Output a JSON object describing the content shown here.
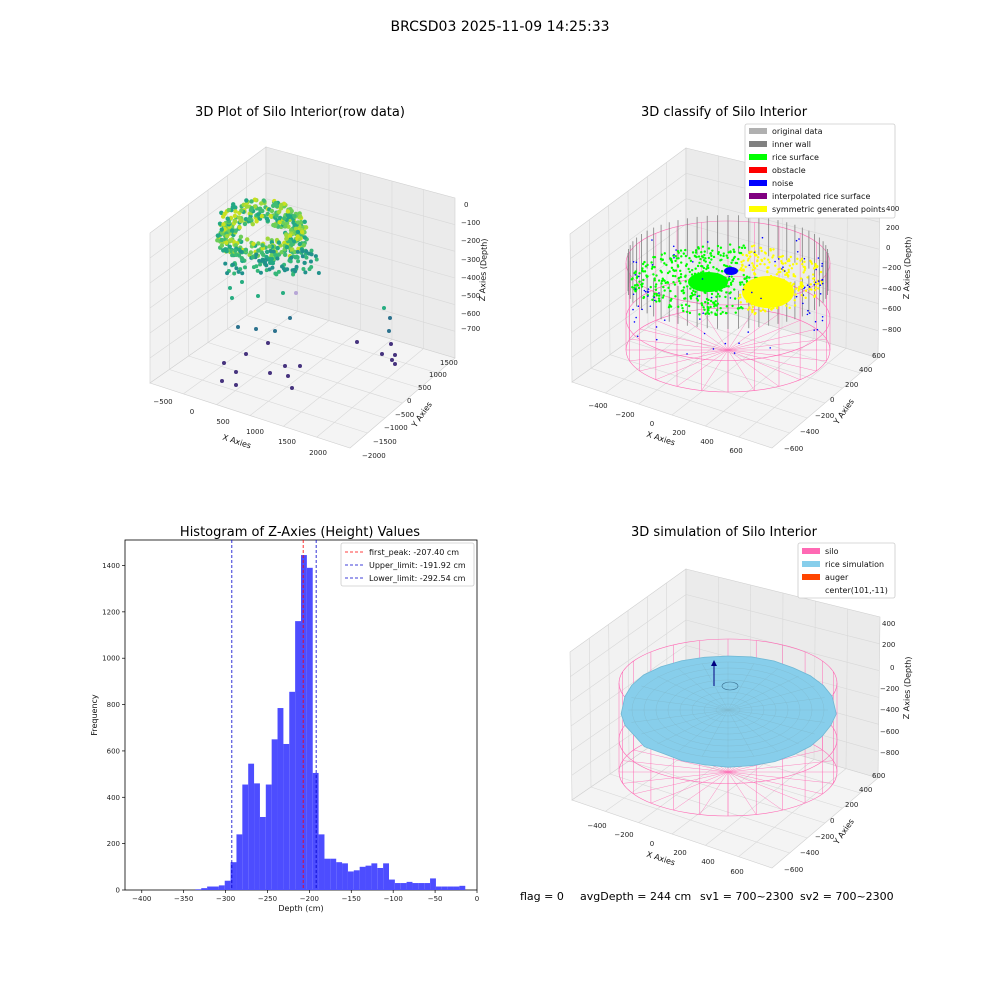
{
  "suptitle": "BRCSD03 2025-11-09 14:25:33",
  "footer": {
    "flag": "flag = 0",
    "avg": "avgDepth = 244 cm",
    "sv1": "sv1 = 700~2300",
    "sv2": "sv2 = 700~2300"
  },
  "colors": {
    "hist_bar": "#4d4dff",
    "first_peak": "#ff0000",
    "limits": "#0000cc",
    "silo": "#ff69b4",
    "rice": "#87ceeb",
    "auger": "#ff4500",
    "rice_surface": "#00ff00",
    "noise": "#0000ff",
    "symmetric": "#ffff00"
  },
  "plot1": {
    "title": "3D Plot of Silo Interior(row data)",
    "xlabel": "X Axies",
    "ylabel": "Y Axies",
    "zlabel": "Z Axies (Depth)",
    "xticks": [
      "−500",
      "0",
      "500",
      "1000",
      "1500",
      "2000"
    ],
    "yticks": [
      "−2000",
      "−1500",
      "−1000",
      "−500",
      "0",
      "500",
      "1000",
      "1500"
    ],
    "zticks": [
      "0",
      "−100",
      "−200",
      "−300",
      "−400",
      "−500",
      "−600",
      "−700"
    ]
  },
  "plot2": {
    "title": "3D classify of Silo Interior",
    "xlabel": "X Axies",
    "ylabel": "Y Axies",
    "zlabel": "Z Axies (Depth)",
    "xticks": [
      "−400",
      "−200",
      "0",
      "200",
      "400",
      "600"
    ],
    "yticks": [
      "−600",
      "−400",
      "−200",
      "0",
      "200",
      "400",
      "600"
    ],
    "zticks": [
      "400",
      "200",
      "0",
      "−200",
      "−400",
      "−600",
      "−800"
    ],
    "legend": [
      {
        "label": "original data",
        "color": "#b0b0b0"
      },
      {
        "label": "inner wall",
        "color": "#808080"
      },
      {
        "label": "rice surface",
        "color": "#00ff00"
      },
      {
        "label": "obstacle",
        "color": "#ff0000"
      },
      {
        "label": "noise",
        "color": "#0000ff"
      },
      {
        "label": "interpolated rice surface",
        "color": "#800080"
      },
      {
        "label": "symmetric generated points",
        "color": "#ffff00"
      }
    ]
  },
  "plot4": {
    "title": "3D simulation of Silo Interior",
    "xlabel": "X Axies",
    "ylabel": "Y Axies",
    "zlabel": "Z Axies (Depth)",
    "xticks": [
      "−400",
      "−200",
      "0",
      "200",
      "400",
      "600"
    ],
    "yticks": [
      "−600",
      "−400",
      "−200",
      "0",
      "200",
      "400",
      "600"
    ],
    "zticks": [
      "400",
      "200",
      "0",
      "−200",
      "−400",
      "−600",
      "−800"
    ],
    "legend": [
      {
        "label": "silo",
        "color": "#ff69b4"
      },
      {
        "label": "rice simulation",
        "color": "#87ceeb"
      },
      {
        "label": "auger",
        "color": "#ff4500"
      },
      {
        "label": "center(101,-11)",
        "color": ""
      }
    ]
  },
  "chart_data": {
    "type": "bar",
    "title": "Histogram of Z-Axies (Height) Values",
    "xlabel": "Depth (cm)",
    "ylabel": "Frequency",
    "xlim": [
      -420,
      0
    ],
    "ylim": [
      0,
      1510
    ],
    "xticks": [
      -400,
      -350,
      -300,
      -250,
      -200,
      -150,
      -100,
      -50,
      0
    ],
    "yticks": [
      0,
      200,
      400,
      600,
      800,
      1000,
      1200,
      1400
    ],
    "bin_width": 7,
    "bins": [
      [
        -336,
        3
      ],
      [
        -329,
        8
      ],
      [
        -322,
        15
      ],
      [
        -315,
        15
      ],
      [
        -308,
        20
      ],
      [
        -301,
        40
      ],
      [
        -294,
        120
      ],
      [
        -287,
        240
      ],
      [
        -280,
        455
      ],
      [
        -273,
        545
      ],
      [
        -266,
        460
      ],
      [
        -259,
        315
      ],
      [
        -252,
        455
      ],
      [
        -245,
        650
      ],
      [
        -238,
        785
      ],
      [
        -231,
        630
      ],
      [
        -224,
        855
      ],
      [
        -217,
        1160
      ],
      [
        -210,
        1445
      ],
      [
        -203,
        1390
      ],
      [
        -196,
        505
      ],
      [
        -189,
        240
      ],
      [
        -182,
        135
      ],
      [
        -175,
        135
      ],
      [
        -168,
        120
      ],
      [
        -161,
        115
      ],
      [
        -154,
        80
      ],
      [
        -147,
        85
      ],
      [
        -140,
        100
      ],
      [
        -133,
        105
      ],
      [
        -126,
        115
      ],
      [
        -119,
        95
      ],
      [
        -112,
        115
      ],
      [
        -105,
        45
      ],
      [
        -98,
        30
      ],
      [
        -91,
        30
      ],
      [
        -84,
        35
      ],
      [
        -77,
        30
      ],
      [
        -70,
        30
      ],
      [
        -63,
        30
      ],
      [
        -56,
        50
      ],
      [
        -49,
        15
      ],
      [
        -42,
        15
      ],
      [
        -35,
        15
      ],
      [
        -28,
        15
      ],
      [
        -21,
        18
      ]
    ],
    "vlines": [
      {
        "name": "first_peak: -207.40 cm",
        "x": -207.4,
        "color": "#ff0000"
      },
      {
        "name": "Upper_limit: -191.92 cm",
        "x": -191.92,
        "color": "#0000cc"
      },
      {
        "name": "Lower_limit: -292.54 cm",
        "x": -292.54,
        "color": "#0000cc"
      }
    ]
  }
}
